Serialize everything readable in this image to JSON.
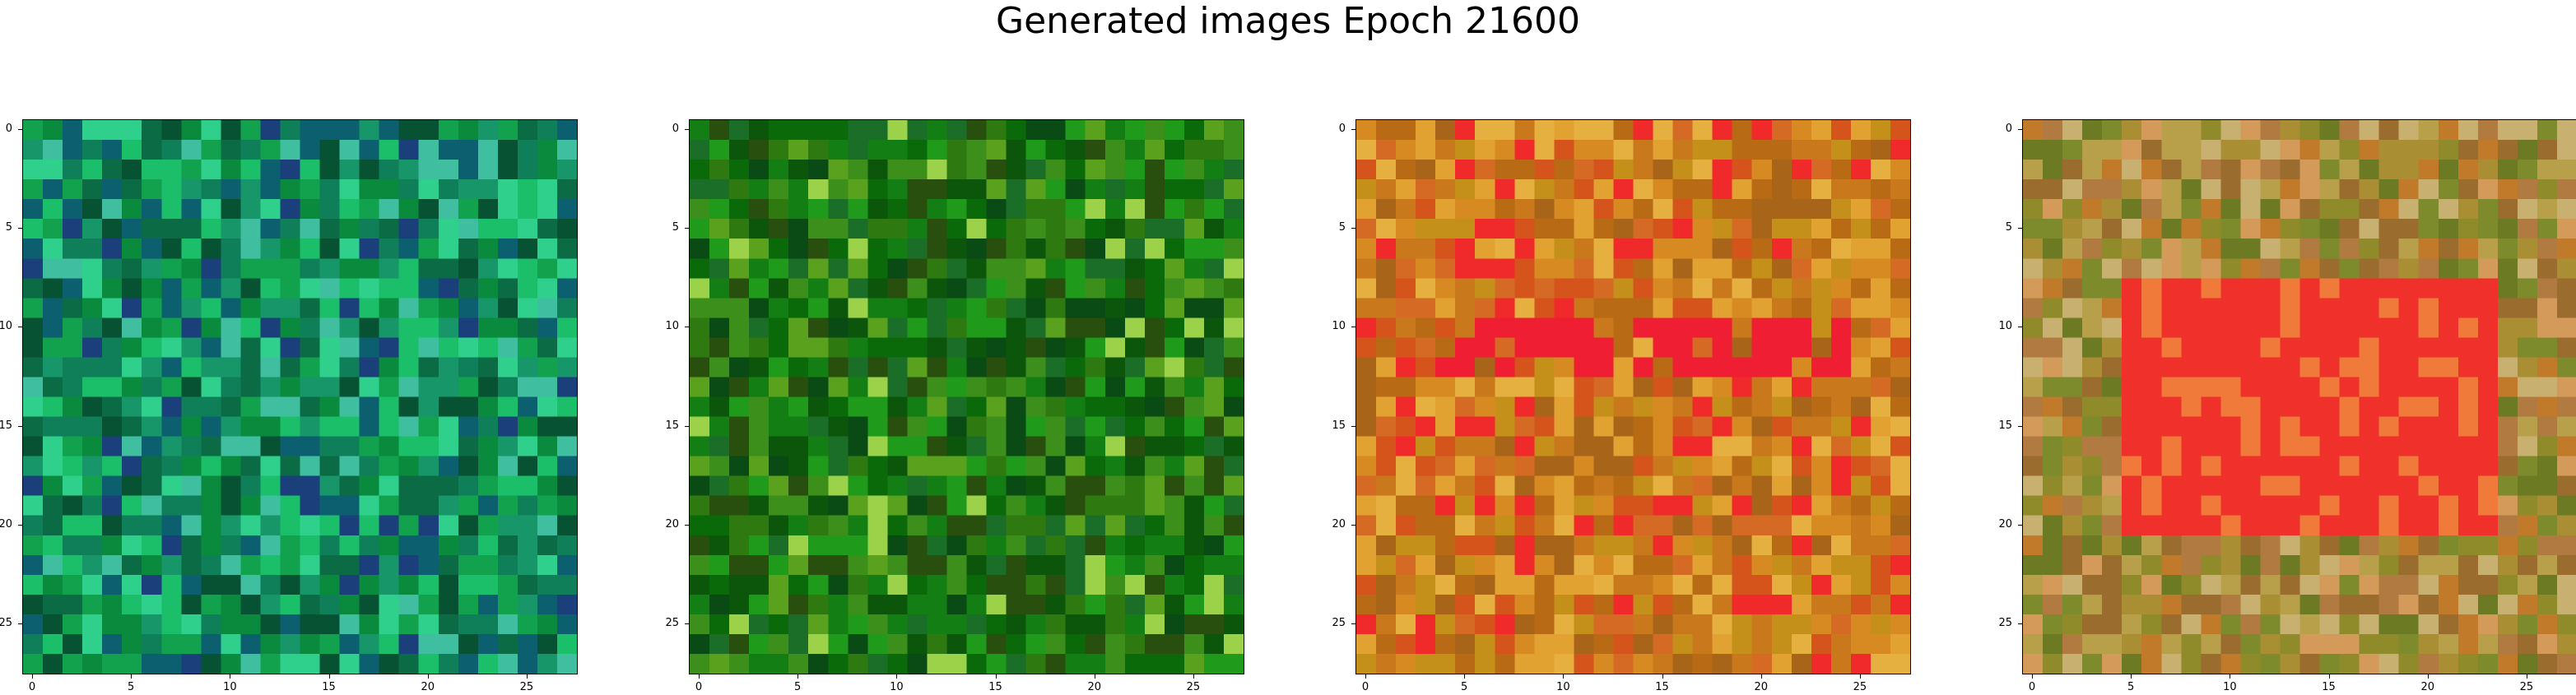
{
  "title": "Generated images Epoch 21600",
  "chart_data": {
    "type": "heatmap",
    "title": "Generated images Epoch 21600",
    "grid": false,
    "panels": [
      {
        "name": "",
        "size": 28,
        "palette": "green-teal",
        "xticks": [
          0,
          5,
          10,
          15,
          20,
          25
        ],
        "yticks": [
          0,
          5,
          10,
          15,
          20,
          25
        ]
      },
      {
        "name": "",
        "size": 28,
        "palette": "dark-green",
        "xticks": [
          0,
          5,
          10,
          15,
          20,
          25
        ],
        "yticks": [
          0,
          5,
          10,
          15,
          20,
          25
        ]
      },
      {
        "name": "",
        "size": 28,
        "palette": "orange-red",
        "xticks": [
          0,
          5,
          10,
          15,
          20,
          25
        ],
        "yticks": [
          0,
          5,
          10,
          15,
          20,
          25
        ]
      },
      {
        "name": "",
        "size": 28,
        "palette": "olive-red-center",
        "xticks": [
          0,
          5,
          10,
          15,
          20,
          25
        ],
        "yticks": [
          0,
          5,
          10,
          15,
          20,
          25
        ]
      }
    ]
  },
  "colors": {
    "green-teal": [
      "#0a8a3c",
      "#12a24e",
      "#0b6b45",
      "#1bbf6a",
      "#0f7f5a",
      "#2fd08c",
      "#085234",
      "#17966a",
      "#3fbfa0",
      "#0c5f6e"
    ],
    "dark-green": [
      "#0a6a0a",
      "#137e13",
      "#0c560c",
      "#1f9a1a",
      "#2f7a10",
      "#0a4a14",
      "#3d8f1c",
      "#5aa11e",
      "#1b6e27",
      "#294f0e"
    ],
    "orange-red": [
      "#c9781c",
      "#d88a22",
      "#b86a14",
      "#e2a232",
      "#d5541c",
      "#f02a2a",
      "#c4901a",
      "#a86418",
      "#e5b040",
      "#d46a24"
    ],
    "olive-red-center": [
      "#8f8a2a",
      "#a98e34",
      "#c07a2a",
      "#7e8b2c",
      "#b8a04a",
      "#d49a5a",
      "#6d7a24",
      "#c8b070",
      "#9a6c2e",
      "#b07a40"
    ]
  }
}
